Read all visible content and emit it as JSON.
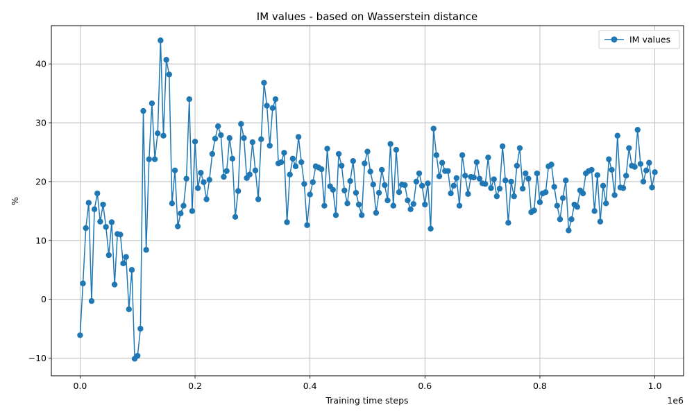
{
  "chart_data": {
    "type": "line",
    "title": "IM values - based on Wasserstein distance",
    "xlabel": "Training time steps",
    "ylabel": "%",
    "x_offset_text": "1e6",
    "xlim": [
      -0.05,
      1.05
    ],
    "ylim": [
      -13,
      46.5
    ],
    "x_ticks": [
      0.0,
      0.2,
      0.4,
      0.6,
      0.8,
      1.0
    ],
    "x_tick_labels": [
      "0.0",
      "0.2",
      "0.4",
      "0.6",
      "0.8",
      "1.0"
    ],
    "y_ticks": [
      -10,
      0,
      10,
      20,
      30,
      40
    ],
    "y_tick_labels": [
      "−10",
      "0",
      "10",
      "20",
      "30",
      "40"
    ],
    "grid": true,
    "legend": {
      "position": "top-right",
      "entries": [
        "IM values"
      ]
    },
    "colors": {
      "line": "#1f77b4"
    },
    "series": [
      {
        "name": "IM values",
        "x_start": 0.0,
        "x_step": 0.005,
        "values": [
          -6.1,
          2.7,
          12.1,
          16.4,
          -0.3,
          15.3,
          18.0,
          13.2,
          16.1,
          12.3,
          7.5,
          13.1,
          2.5,
          11.1,
          11.0,
          6.1,
          7.2,
          -1.7,
          5.0,
          -10.1,
          -9.6,
          -5.0,
          32.0,
          8.4,
          23.8,
          33.3,
          23.8,
          28.2,
          44.0,
          27.8,
          40.7,
          38.2,
          16.3,
          21.9,
          12.4,
          14.6,
          15.9,
          20.5,
          34.0,
          15.0,
          26.8,
          18.9,
          21.5,
          19.9,
          17.0,
          20.3,
          24.7,
          27.3,
          29.4,
          27.9,
          20.8,
          21.8,
          27.4,
          23.9,
          14.0,
          18.4,
          29.8,
          27.4,
          20.6,
          21.2,
          26.7,
          21.9,
          17.0,
          27.2,
          36.8,
          32.9,
          26.1,
          32.5,
          34.0,
          23.1,
          23.3,
          24.9,
          13.1,
          21.2,
          23.9,
          22.6,
          27.6,
          23.3,
          19.6,
          12.6,
          17.8,
          19.9,
          22.6,
          22.4,
          22.1,
          15.9,
          25.6,
          19.2,
          18.6,
          14.3,
          24.7,
          22.7,
          18.5,
          16.3,
          20.1,
          23.5,
          18.1,
          16.1,
          14.3,
          23.1,
          25.1,
          21.7,
          19.5,
          14.7,
          18.1,
          22.0,
          19.4,
          16.8,
          26.4,
          15.9,
          25.4,
          18.2,
          19.5,
          19.4,
          16.8,
          15.3,
          16.2,
          20.0,
          21.4,
          19.3,
          16.1,
          19.7,
          12.0,
          29.0,
          24.5,
          20.9,
          23.2,
          21.8,
          21.8,
          18.0,
          19.3,
          20.6,
          15.9,
          24.5,
          21.0,
          17.9,
          20.8,
          20.7,
          23.3,
          20.5,
          19.7,
          19.6,
          24.1,
          18.9,
          20.4,
          17.5,
          18.8,
          26.0,
          20.2,
          13.0,
          20.0,
          17.5,
          22.7,
          25.7,
          18.8,
          21.4,
          20.5,
          14.8,
          15.1,
          21.4,
          16.5,
          18.0,
          18.2,
          22.6,
          22.9,
          19.1,
          15.9,
          13.6,
          17.2,
          20.2,
          11.7,
          13.6,
          16.1,
          15.7,
          18.5,
          18.0,
          21.4,
          21.8,
          22.0,
          15.0,
          21.1,
          13.2,
          19.3,
          16.3,
          23.8,
          22.0,
          17.7,
          27.8,
          19.0,
          18.9,
          21.0,
          25.7,
          22.7,
          22.5,
          28.8,
          23.0,
          20.0,
          21.9,
          23.2,
          19.0,
          21.6
        ]
      }
    ]
  }
}
